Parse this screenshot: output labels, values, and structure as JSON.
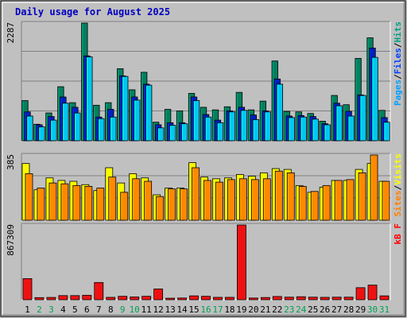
{
  "chart_data": [
    {
      "type": "bar",
      "title": "Daily usage for August 2025",
      "ymax_label": "2287",
      "ylim": [
        0,
        2287
      ],
      "legend": [
        {
          "label": "Pages",
          "color": "#00A0FF"
        },
        {
          "label": "Files",
          "color": "#0040FF"
        },
        {
          "label": "Hits",
          "color": "#00A080"
        }
      ],
      "legend_separator": "/",
      "categories": [
        "1",
        "2",
        "3",
        "4",
        "5",
        "6",
        "7",
        "8",
        "9",
        "10",
        "11",
        "12",
        "13",
        "14",
        "15",
        "16",
        "17",
        "18",
        "19",
        "20",
        "21",
        "22",
        "23",
        "24",
        "25",
        "26",
        "27",
        "28",
        "29",
        "30",
        "31"
      ],
      "weekend_days": [
        "2",
        "3",
        "9",
        "10",
        "16",
        "17",
        "23",
        "24",
        "30",
        "31"
      ],
      "series": [
        {
          "name": "Hits",
          "color": "#00805F",
          "values": [
            780,
            320,
            540,
            1050,
            740,
            2287,
            690,
            740,
            1400,
            990,
            1330,
            360,
            610,
            580,
            920,
            650,
            600,
            660,
            940,
            600,
            770,
            1550,
            570,
            560,
            530,
            380,
            880,
            700,
            1600,
            2000,
            590
          ]
        },
        {
          "name": "Files",
          "color": "#0020C0",
          "values": [
            560,
            310,
            470,
            850,
            650,
            1650,
            460,
            610,
            1260,
            850,
            1100,
            310,
            350,
            350,
            850,
            510,
            400,
            580,
            650,
            500,
            580,
            1200,
            480,
            490,
            470,
            330,
            730,
            570,
            890,
            1800,
            450
          ]
        },
        {
          "name": "Pages",
          "color": "#00C8F0",
          "values": [
            480,
            270,
            400,
            730,
            540,
            1630,
            430,
            460,
            1250,
            790,
            1080,
            250,
            300,
            330,
            780,
            460,
            350,
            560,
            590,
            410,
            560,
            1100,
            450,
            460,
            420,
            310,
            680,
            480,
            880,
            1620,
            360
          ]
        }
      ]
    },
    {
      "type": "bar",
      "ymax_label": "385",
      "ylim": [
        0,
        385
      ],
      "legend": [
        {
          "label": "Sites",
          "color": "#FF8000"
        },
        {
          "label": "Visits",
          "color": "#FFFF00"
        }
      ],
      "legend_separator": "/",
      "categories": [
        "1",
        "2",
        "3",
        "4",
        "5",
        "6",
        "7",
        "8",
        "9",
        "10",
        "11",
        "12",
        "13",
        "14",
        "15",
        "16",
        "17",
        "18",
        "19",
        "20",
        "21",
        "22",
        "23",
        "24",
        "25",
        "26",
        "27",
        "28",
        "29",
        "30",
        "31"
      ],
      "series": [
        {
          "name": "Visits",
          "color": "#F8F800",
          "values": [
            335,
            180,
            250,
            235,
            230,
            210,
            175,
            310,
            220,
            275,
            250,
            150,
            190,
            190,
            340,
            255,
            245,
            250,
            270,
            260,
            280,
            305,
            300,
            205,
            165,
            195,
            235,
            235,
            300,
            335,
            230
          ]
        },
        {
          "name": "Sites",
          "color": "#FF8800",
          "values": [
            275,
            190,
            220,
            215,
            205,
            200,
            190,
            255,
            165,
            245,
            230,
            140,
            185,
            185,
            310,
            235,
            225,
            240,
            245,
            240,
            245,
            290,
            280,
            200,
            170,
            205,
            235,
            240,
            280,
            385,
            230
          ]
        }
      ]
    },
    {
      "type": "bar",
      "ymax_label": "867309",
      "ylim": [
        0,
        867309
      ],
      "legend": [
        {
          "label": "KBytes",
          "color": "#FF0000"
        }
      ],
      "legend_text": "kB F",
      "categories": [
        "1",
        "2",
        "3",
        "4",
        "5",
        "6",
        "7",
        "8",
        "9",
        "10",
        "11",
        "12",
        "13",
        "14",
        "15",
        "16",
        "17",
        "18",
        "19",
        "20",
        "21",
        "22",
        "23",
        "24",
        "25",
        "26",
        "27",
        "28",
        "29",
        "30",
        "31"
      ],
      "series": [
        {
          "name": "kB F",
          "color": "#EE1111",
          "values": [
            245000,
            25000,
            27000,
            48000,
            48000,
            52000,
            200000,
            28000,
            40000,
            32000,
            40000,
            125000,
            18000,
            20000,
            45000,
            40000,
            28000,
            28000,
            867309,
            20000,
            26000,
            38000,
            30000,
            35000,
            30000,
            28000,
            30000,
            30000,
            140000,
            170000,
            45000
          ]
        }
      ]
    }
  ]
}
